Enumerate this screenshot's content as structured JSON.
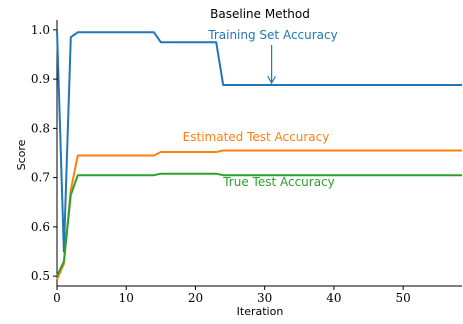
{
  "chart_data": {
    "type": "line",
    "title": "Baseline Method",
    "xlabel": "Iteration",
    "ylabel": "Score",
    "xlim": [
      0,
      58.5
    ],
    "ylim": [
      0.48,
      1.02
    ],
    "xticks": [
      0,
      10,
      20,
      30,
      40,
      50
    ],
    "yticks": [
      0.5,
      0.6,
      0.7,
      0.8,
      0.9,
      1.0
    ],
    "ytick_labels": [
      "0.5",
      "0.6",
      "0.7",
      "0.8",
      "0.9",
      "1.0"
    ],
    "grid": false,
    "series": [
      {
        "name": "Training Set Accuracy",
        "color": "#1f77b4",
        "x": [
          0,
          1,
          2,
          3,
          14,
          15,
          23,
          24,
          58.5
        ],
        "y": [
          1.0,
          0.55,
          0.985,
          0.995,
          0.995,
          0.975,
          0.975,
          0.888,
          0.888
        ]
      },
      {
        "name": "Estimated Test Accuracy",
        "color": "#ff7f0e",
        "x": [
          0,
          1,
          2,
          3,
          14,
          15,
          23,
          24,
          58.5
        ],
        "y": [
          0.493,
          0.525,
          0.675,
          0.745,
          0.745,
          0.752,
          0.752,
          0.755,
          0.755
        ]
      },
      {
        "name": "True Test Accuracy",
        "color": "#2ca02c",
        "x": [
          0,
          1,
          2,
          3,
          14,
          15,
          23,
          24,
          58.5
        ],
        "y": [
          0.5,
          0.53,
          0.665,
          0.705,
          0.705,
          0.708,
          0.708,
          0.705,
          0.705
        ]
      }
    ],
    "annotations": [
      {
        "text": "Training Set Accuracy",
        "color": "#1f77b4",
        "arrow_to": {
          "x": 31,
          "y": 0.888
        }
      },
      {
        "text": "Estimated Test Accuracy",
        "color": "#ff7f0e"
      },
      {
        "text": "True Test Accuracy",
        "color": "#2ca02c"
      }
    ]
  }
}
